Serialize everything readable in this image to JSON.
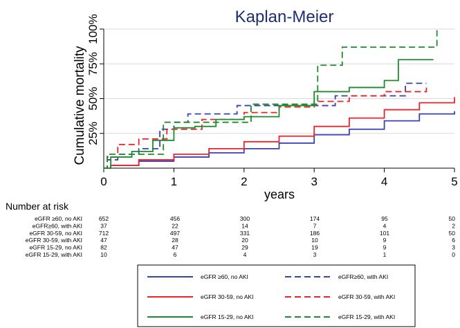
{
  "chart_data": {
    "type": "line",
    "title": "Kaplan-Meier",
    "xlabel": "years",
    "ylabel": "Cumulative mortality",
    "xlim": [
      0,
      5
    ],
    "ylim": [
      0,
      1
    ],
    "x_ticks": [
      "0",
      "1",
      "2",
      "3",
      "4",
      "5"
    ],
    "y_ticks": [
      {
        "value": 0.25,
        "label": "25%"
      },
      {
        "value": 0.5,
        "label": "50%"
      },
      {
        "value": 0.75,
        "label": "75%"
      },
      {
        "value": 1.0,
        "label": "100%"
      }
    ],
    "grid": "horizontal",
    "series": [
      {
        "name": "eGFR ≥60, no AKI",
        "color": "#3a3fb0",
        "dash": "solid",
        "points": [
          [
            0,
            0
          ],
          [
            0.1,
            0.02
          ],
          [
            0.5,
            0.05
          ],
          [
            1,
            0.08
          ],
          [
            1.5,
            0.11
          ],
          [
            2,
            0.14
          ],
          [
            2.5,
            0.18
          ],
          [
            3,
            0.24
          ],
          [
            3.5,
            0.28
          ],
          [
            4,
            0.34
          ],
          [
            4.5,
            0.39
          ],
          [
            5,
            0.41
          ]
        ]
      },
      {
        "name": "eGFR≥60, with AKI",
        "color": "#3a3fb0",
        "dash": "dashed",
        "points": [
          [
            0,
            0
          ],
          [
            0.05,
            0.06
          ],
          [
            0.2,
            0.1
          ],
          [
            0.5,
            0.14
          ],
          [
            0.8,
            0.28
          ],
          [
            1,
            0.33
          ],
          [
            1.2,
            0.39
          ],
          [
            1.9,
            0.45
          ],
          [
            2.6,
            0.45
          ],
          [
            3.3,
            0.52
          ],
          [
            3.9,
            0.52
          ],
          [
            4.3,
            0.61
          ],
          [
            4.6,
            0.61
          ]
        ]
      },
      {
        "name": "eGFR 30-59, no AKI",
        "color": "#e8232b",
        "dash": "solid",
        "points": [
          [
            0,
            0
          ],
          [
            0.1,
            0.02
          ],
          [
            0.5,
            0.06
          ],
          [
            1,
            0.1
          ],
          [
            1.5,
            0.14
          ],
          [
            2,
            0.19
          ],
          [
            2.5,
            0.23
          ],
          [
            3,
            0.3
          ],
          [
            3.5,
            0.36
          ],
          [
            4,
            0.42
          ],
          [
            4.5,
            0.47
          ],
          [
            5,
            0.51
          ]
        ]
      },
      {
        "name": "eGFR 30-59, with AKI",
        "color": "#e8232b",
        "dash": "dashed",
        "points": [
          [
            0,
            0
          ],
          [
            0.05,
            0.08
          ],
          [
            0.2,
            0.17
          ],
          [
            0.5,
            0.21
          ],
          [
            0.9,
            0.28
          ],
          [
            1.4,
            0.35
          ],
          [
            2,
            0.4
          ],
          [
            2.5,
            0.44
          ],
          [
            3,
            0.48
          ],
          [
            3.5,
            0.52
          ],
          [
            4,
            0.55
          ],
          [
            4.6,
            0.58
          ]
        ]
      },
      {
        "name": "eGFR 15-29, no AKI",
        "color": "#1d8a2b",
        "dash": "solid",
        "points": [
          [
            0,
            0
          ],
          [
            0.1,
            0.08
          ],
          [
            0.4,
            0.12
          ],
          [
            0.7,
            0.2
          ],
          [
            1,
            0.29
          ],
          [
            1.3,
            0.3
          ],
          [
            1.6,
            0.35
          ],
          [
            2,
            0.37
          ],
          [
            2.5,
            0.45
          ],
          [
            3,
            0.55
          ],
          [
            3.5,
            0.58
          ],
          [
            4,
            0.63
          ],
          [
            4.2,
            0.78
          ],
          [
            4.7,
            0.78
          ]
        ]
      },
      {
        "name": "eGFR 15-29, with AKI",
        "color": "#1d8a2b",
        "dash": "dashed",
        "points": [
          [
            0,
            0
          ],
          [
            0.05,
            0.1
          ],
          [
            0.8,
            0.1
          ],
          [
            0.85,
            0.33
          ],
          [
            1.5,
            0.33
          ],
          [
            2.1,
            0.33
          ],
          [
            2.1,
            0.46
          ],
          [
            2.9,
            0.46
          ],
          [
            3.05,
            0.74
          ],
          [
            3.4,
            0.74
          ],
          [
            3.4,
            0.87
          ],
          [
            4.75,
            0.87
          ],
          [
            4.75,
            1.0
          ]
        ]
      }
    ],
    "risk_table": {
      "title": "Number at risk",
      "rows": [
        {
          "label": "eGFR ≥60, no AKI",
          "values": [
            "652",
            "456",
            "300",
            "174",
            "95",
            "50"
          ]
        },
        {
          "label": "eGFR≥60, with AKI",
          "values": [
            "37",
            "22",
            "14",
            "7",
            "4",
            "2"
          ]
        },
        {
          "label": "eGFR 30-59, no AKI",
          "values": [
            "712",
            "497",
            "331",
            "186",
            "101",
            "50"
          ]
        },
        {
          "label": "eGFR 30-59, with AKI",
          "values": [
            "47",
            "28",
            "20",
            "10",
            "9",
            "6"
          ]
        },
        {
          "label": "eGFR 15-29, no AKI",
          "values": [
            "82",
            "47",
            "29",
            "19",
            "9",
            "3"
          ]
        },
        {
          "label": "eGFR 15-29, with AKI",
          "values": [
            "10",
            "6",
            "4",
            "3",
            "1",
            "0"
          ]
        }
      ]
    },
    "legend": {
      "placement": "bottom",
      "items": [
        {
          "label": "eGFR ≥60, no AKI",
          "color": "#3a3fb0",
          "dash": "solid"
        },
        {
          "label": "eGFR≥60, with AKI",
          "color": "#3a3fb0",
          "dash": "dashed"
        },
        {
          "label": "eGFR 30-59, no AKI",
          "color": "#e8232b",
          "dash": "solid"
        },
        {
          "label": "eGFR 30-59, with AKI",
          "color": "#e8232b",
          "dash": "dashed"
        },
        {
          "label": "eGFR 15-29, no AKI",
          "color": "#1d8a2b",
          "dash": "solid"
        },
        {
          "label": "eGFR 15-29, with AKI",
          "color": "#1d8a2b",
          "dash": "dashed"
        }
      ]
    }
  }
}
